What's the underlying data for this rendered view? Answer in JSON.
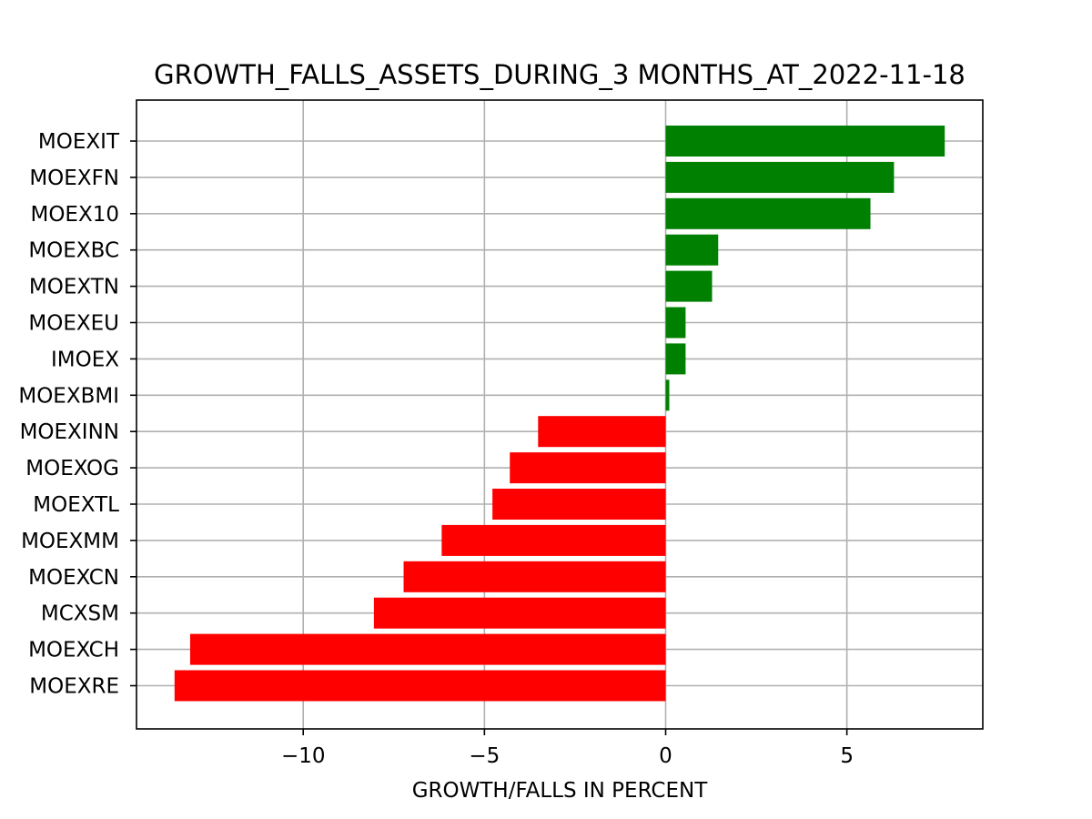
{
  "chart_data": {
    "type": "bar",
    "orientation": "horizontal",
    "title": "GROWTH_FALLS_ASSETS_DURING_3 MONTHS_AT_2022-11-18",
    "xlabel": "GROWTH/FALLS IN PERCENT",
    "ylabel": "",
    "xlim": [
      -14.6,
      8.75
    ],
    "xticks": [
      -10,
      -5,
      0,
      5
    ],
    "xtick_labels": [
      "−10",
      "−5",
      "0",
      "5"
    ],
    "grid": true,
    "categories": [
      "MOEXIT",
      "MOEXFN",
      "MOEX10",
      "MOEXBC",
      "MOEXTN",
      "MOEXEU",
      "IMOEX",
      "MOEXBMI",
      "MOEXINN",
      "MOEXOG",
      "MOEXTL",
      "MOEXMM",
      "MOEXCN",
      "MCXSM",
      "MOEXCH",
      "MOEXRE"
    ],
    "values": [
      7.7,
      6.3,
      5.65,
      1.45,
      1.28,
      0.55,
      0.55,
      0.1,
      -3.52,
      -4.3,
      -4.78,
      -6.18,
      -7.23,
      -8.05,
      -13.12,
      -13.55
    ],
    "positive_color": "#008000",
    "negative_color": "#ff0000"
  }
}
